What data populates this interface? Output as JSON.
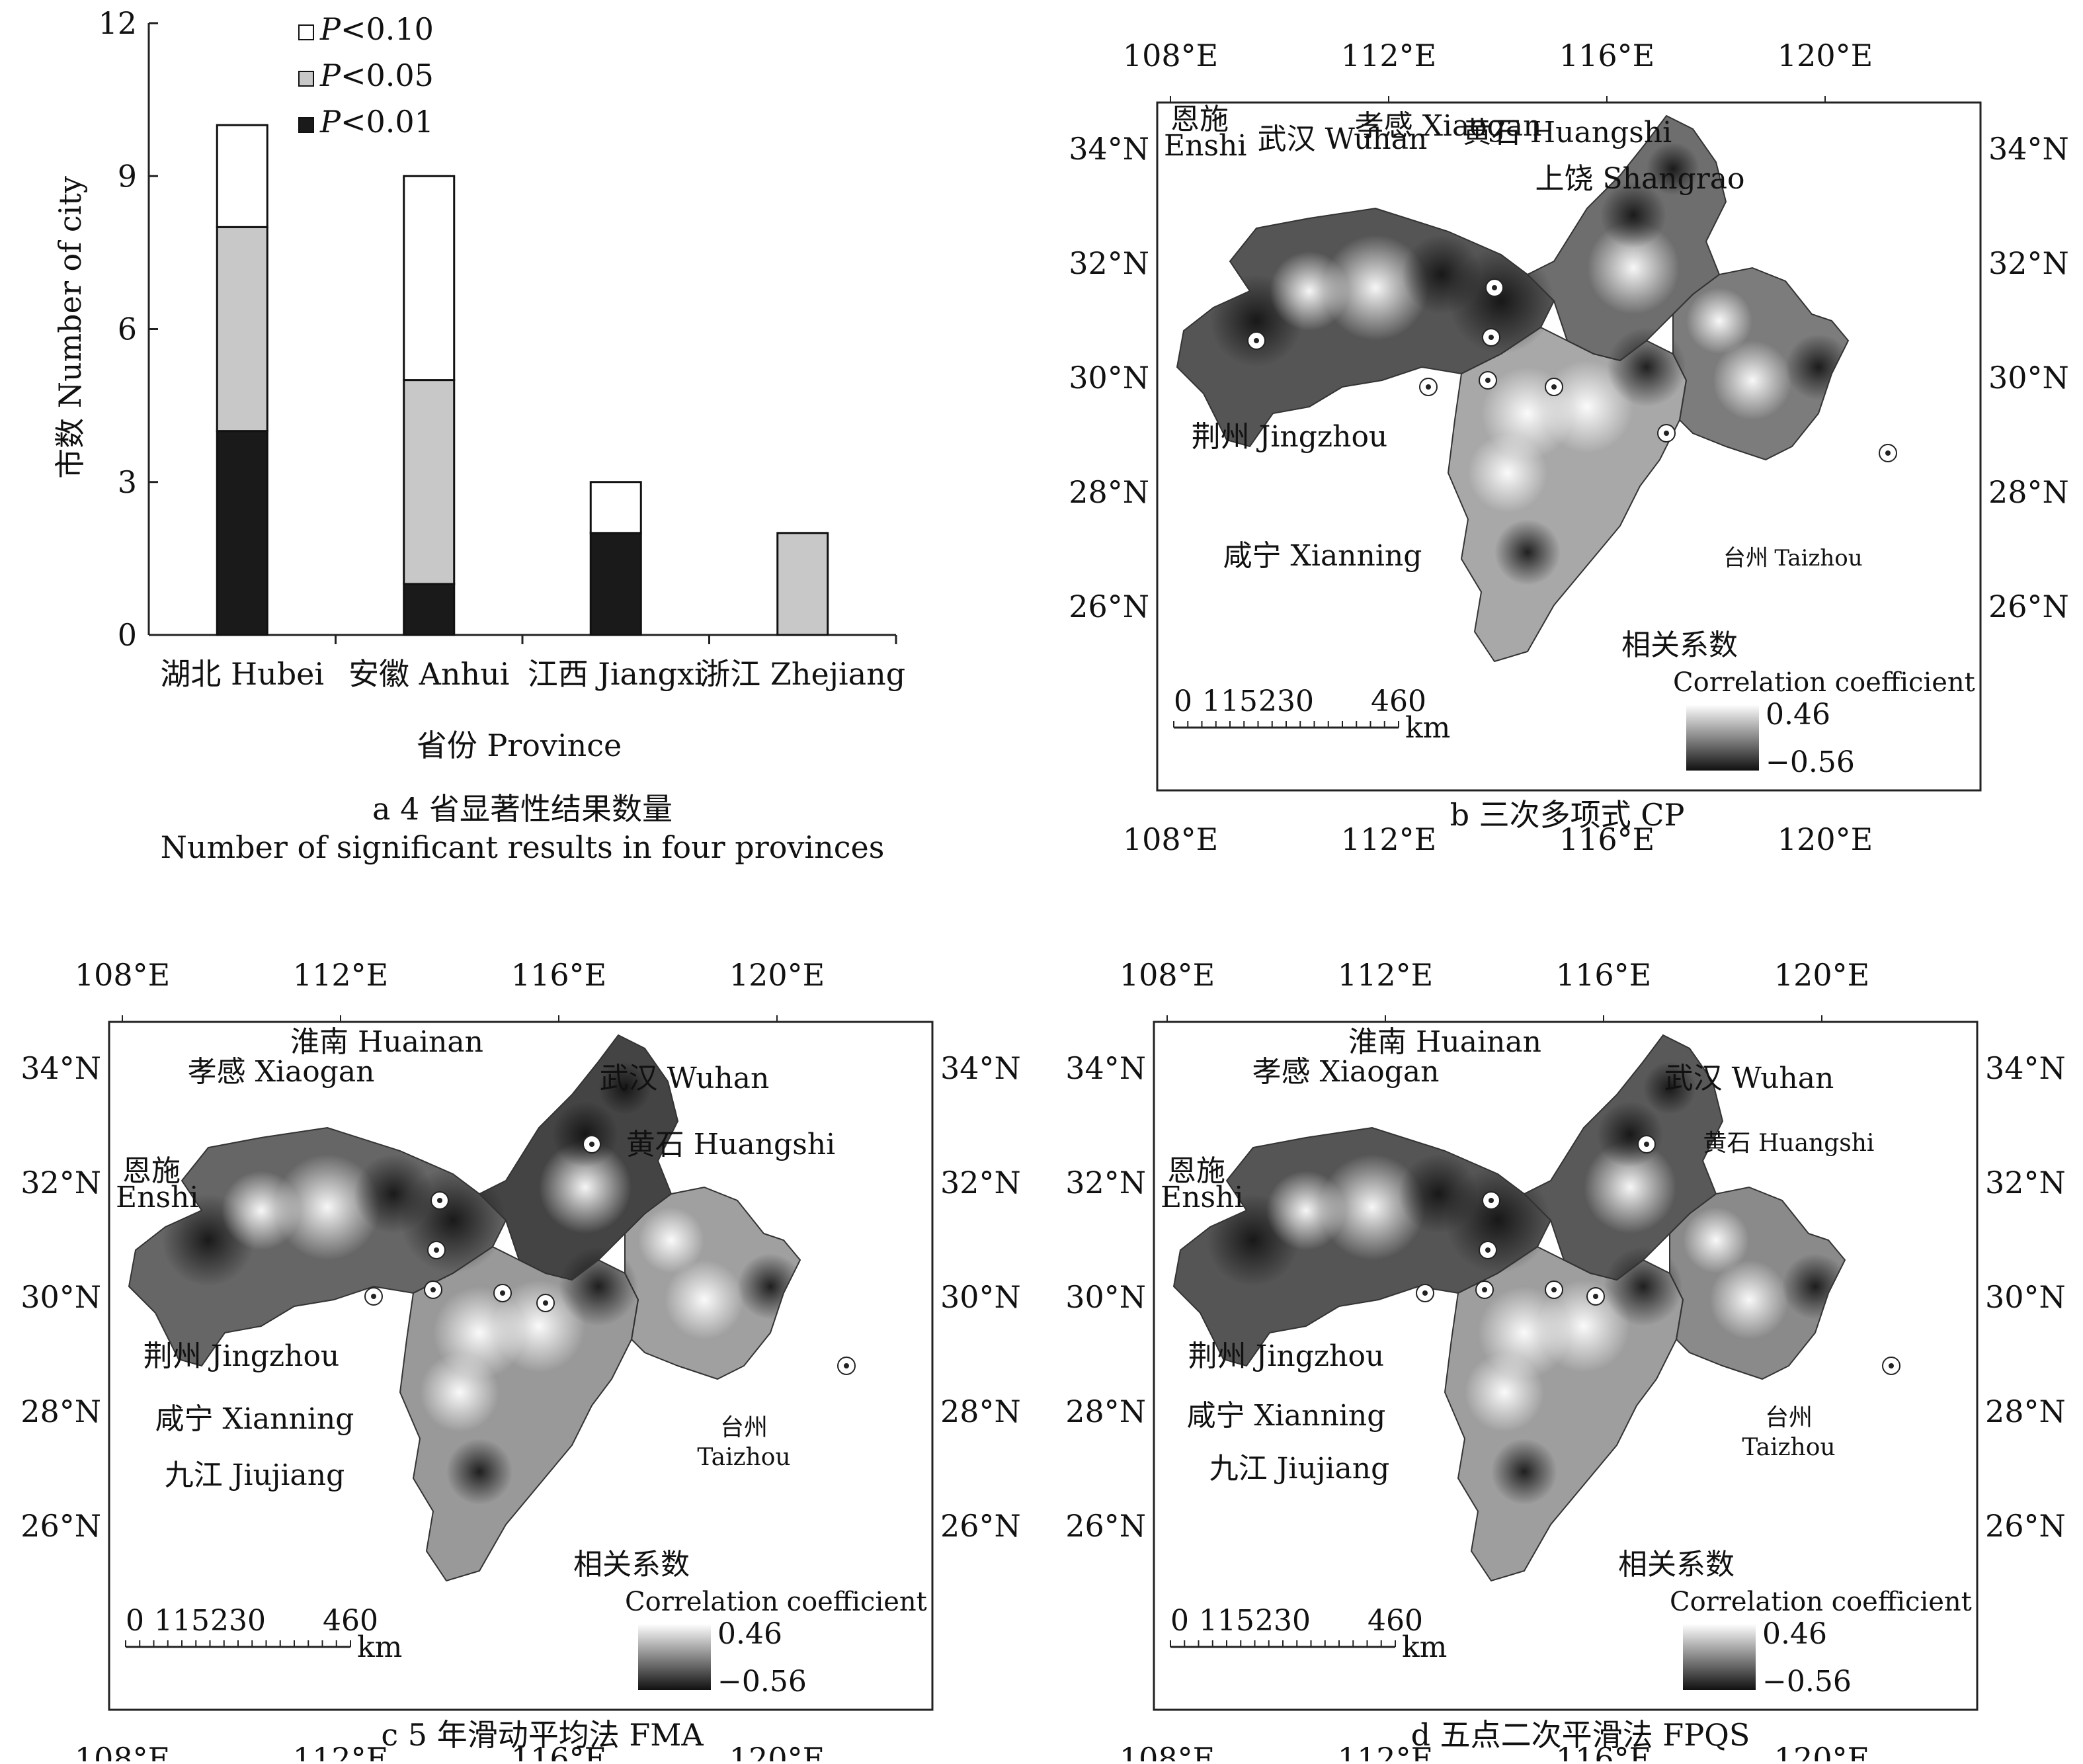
{
  "chart_data": [
    {
      "panel": "a",
      "type": "bar",
      "stacked": true,
      "title": "a 4 省显著性结果数量",
      "title_en": "Number of significant results in four provinces",
      "xlabel": "省份 Province",
      "ylabel": "市数 Number of city",
      "ylim": [
        0,
        12
      ],
      "yticks": [
        "0",
        "3",
        "6",
        "9",
        "12"
      ],
      "categories": [
        "湖北 Hubei",
        "安徽 Anhui",
        "江西 Jiangxi",
        "浙江 Zhejiang"
      ],
      "series": [
        {
          "name": "P<0.01",
          "fill": "#1a1a1a",
          "values": [
            4,
            1,
            2,
            0
          ]
        },
        {
          "name": "P<0.05",
          "fill": "#c8c8c8",
          "values": [
            4,
            4,
            0,
            2
          ]
        },
        {
          "name": "P<0.10",
          "fill": "#ffffff",
          "values": [
            2,
            4,
            1,
            0
          ]
        }
      ],
      "legend": [
        {
          "prefix": "P",
          "suffix": "<0.10",
          "fill": "#ffffff"
        },
        {
          "prefix": "P",
          "suffix": "<0.05",
          "fill": "#c8c8c8"
        },
        {
          "prefix": "P",
          "suffix": "<0.01",
          "fill": "#1a1a1a"
        }
      ],
      "legend_position": "top-left"
    },
    {
      "panel": "b",
      "type": "heatmap",
      "title": "b 三次多项式 CP",
      "xticks": [
        "108°E",
        "112°E",
        "116°E",
        "120°E"
      ],
      "yticks": [
        "34°N",
        "32°N",
        "30°N",
        "28°N",
        "26°N"
      ],
      "scale": [
        "0",
        "115",
        "230",
        "460"
      ],
      "scale_unit": "km",
      "legend_title": "相关系数",
      "legend_title_en": "Correlation coefficient",
      "legend_max": "0.46",
      "legend_min": "−0.56",
      "cities": [
        "恩施 Enshi",
        "武汉 Wuhan",
        "孝感 Xiaogan",
        "黄石 Huangshi",
        "上饶 Shangrao",
        "荆州 Jingzhou",
        "咸宁 Xianning",
        "台州 Taizhou"
      ]
    },
    {
      "panel": "c",
      "type": "heatmap",
      "title": "c 5 年滑动平均法 FMA",
      "xticks": [
        "108°E",
        "112°E",
        "116°E",
        "120°E"
      ],
      "yticks": [
        "34°N",
        "32°N",
        "30°N",
        "28°N",
        "26°N"
      ],
      "scale": [
        "0",
        "115",
        "230",
        "460"
      ],
      "scale_unit": "km",
      "legend_title": "相关系数",
      "legend_title_en": "Correlation coefficient",
      "legend_max": "0.46",
      "legend_min": "−0.56",
      "cities": [
        "淮南 Huainan",
        "孝感 Xiaogan",
        "武汉 Wuhan",
        "黄石 Huangshi",
        "恩施 Enshi",
        "荆州 Jingzhou",
        "咸宁 Xianning",
        "九江 Jiujiang",
        "台州 Taizhou"
      ]
    },
    {
      "panel": "d",
      "type": "heatmap",
      "title": "d 五点二次平滑法 FPQS",
      "xticks": [
        "108°E",
        "112°E",
        "116°E",
        "120°E"
      ],
      "yticks": [
        "34°N",
        "32°N",
        "30°N",
        "28°N",
        "26°N"
      ],
      "scale": [
        "0",
        "115",
        "230",
        "460"
      ],
      "scale_unit": "km",
      "legend_title": "相关系数",
      "legend_title_en": "Correlation coefficient",
      "legend_max": "0.46",
      "legend_min": "−0.56",
      "cities": [
        "淮南 Huainan",
        "孝感 Xiaogan",
        "武汉 Wuhan",
        "黄石 Huangshi",
        "恩施 Enshi",
        "荆州 Jingzhou",
        "咸宁 Xianning",
        "九江 Jiujiang",
        "台州 Taizhou"
      ]
    }
  ]
}
